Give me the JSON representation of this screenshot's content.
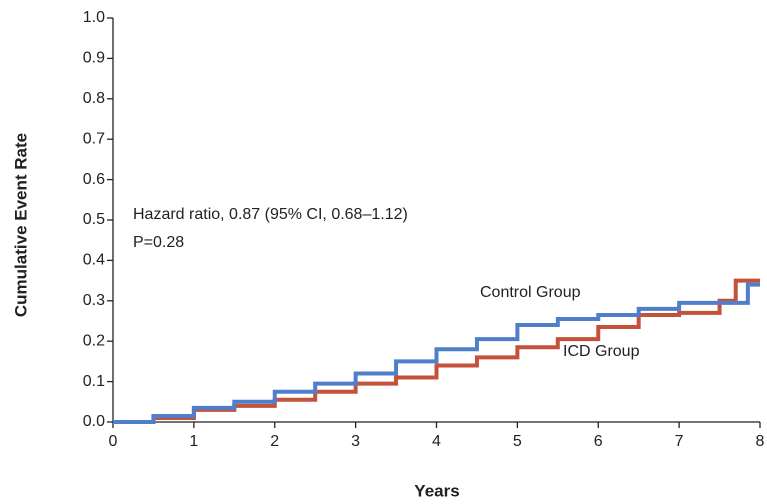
{
  "chart_data": {
    "type": "step",
    "xlabel": "Years",
    "ylabel": "Cumulative Event Rate",
    "annotations": [
      "Hazard ratio, 0.87 (95% CI, 0.68–1.12)",
      "P=0.28"
    ],
    "xlim": [
      0,
      8
    ],
    "xticks": [
      0,
      1,
      2,
      3,
      4,
      5,
      6,
      7,
      8
    ],
    "ylim": [
      0,
      1
    ],
    "yticks": [
      {
        "value": 0,
        "label": "0.0"
      },
      0.1,
      0.2,
      0.3,
      0.4,
      0.5,
      0.6,
      0.7,
      0.8,
      0.9,
      {
        "value": 1,
        "label": "1.0"
      }
    ],
    "series": [
      {
        "name": "Control Group",
        "color": "#4f7fcb",
        "x": [
          0,
          0.5,
          1,
          1.5,
          2,
          2.5,
          3,
          3.5,
          4,
          4.5,
          5,
          5.5,
          6,
          6.5,
          7,
          7.5,
          7.85,
          8
        ],
        "values": [
          0,
          0.015,
          0.035,
          0.05,
          0.075,
          0.095,
          0.12,
          0.15,
          0.18,
          0.205,
          0.24,
          0.255,
          0.265,
          0.28,
          0.295,
          0.295,
          0.34,
          0.34
        ]
      },
      {
        "name": "ICD Group",
        "color": "#c4523a",
        "x": [
          0,
          0.5,
          1,
          1.5,
          2,
          2.5,
          3,
          3.5,
          4,
          4.5,
          5,
          5.5,
          6,
          6.5,
          7,
          7.5,
          7.7,
          8
        ],
        "values": [
          0,
          0.01,
          0.03,
          0.04,
          0.055,
          0.075,
          0.095,
          0.11,
          0.14,
          0.16,
          0.185,
          0.205,
          0.235,
          0.265,
          0.27,
          0.3,
          0.35,
          0.35
        ]
      }
    ]
  }
}
